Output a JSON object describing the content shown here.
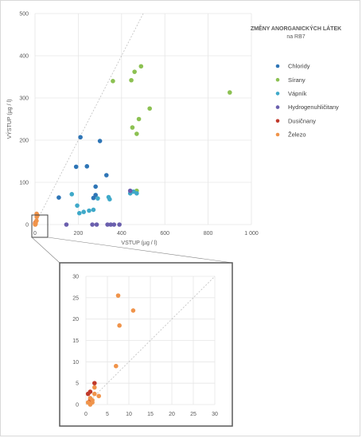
{
  "chart_data": [
    {
      "type": "scatter",
      "title": "ZMĚNY ANORGANICKÝCH LÁTEK",
      "subtitle": "na RB7",
      "xlabel": "VSTUP (µg / l)",
      "ylabel": "VÝSTUP (µg / l)",
      "xlim": [
        0,
        1000
      ],
      "ylim": [
        0,
        500
      ],
      "xticks": [
        "0",
        "200",
        "400",
        "600",
        "800",
        "1 000"
      ],
      "yticks": [
        "0",
        "100",
        "200",
        "300",
        "400",
        "500"
      ],
      "grid": true,
      "legend": "right",
      "reference_line": "y = x",
      "series": [
        {
          "name": "Chloridy",
          "color": "#2e75b6",
          "points": [
            [
              110,
              64
            ],
            [
              190,
              137
            ],
            [
              210,
              207
            ],
            [
              240,
              138
            ],
            [
              280,
              90
            ],
            [
              300,
              198
            ],
            [
              280,
              70
            ],
            [
              330,
              117
            ],
            [
              270,
              63
            ]
          ]
        },
        {
          "name": "Sírany",
          "color": "#8cc152",
          "points": [
            [
              360,
              340
            ],
            [
              445,
              342
            ],
            [
              460,
              362
            ],
            [
              490,
              375
            ],
            [
              530,
              275
            ],
            [
              480,
              250
            ],
            [
              450,
              230
            ],
            [
              470,
              215
            ],
            [
              470,
              80
            ],
            [
              900,
              313
            ]
          ]
        },
        {
          "name": "Vápník",
          "color": "#3fa9c9",
          "points": [
            [
              170,
              72
            ],
            [
              195,
              45
            ],
            [
              205,
              27
            ],
            [
              225,
              30
            ],
            [
              250,
              33
            ],
            [
              270,
              35
            ],
            [
              290,
              62
            ],
            [
              340,
              65
            ],
            [
              345,
              60
            ],
            [
              440,
              74
            ],
            [
              455,
              78
            ],
            [
              470,
              74
            ]
          ]
        },
        {
          "name": "Hydrogenuhličitany",
          "color": "#6a5fad",
          "points": [
            [
              145,
              0
            ],
            [
              265,
              0
            ],
            [
              285,
              0
            ],
            [
              335,
              0
            ],
            [
              350,
              0
            ],
            [
              365,
              0
            ],
            [
              390,
              0
            ],
            [
              440,
              80
            ]
          ]
        },
        {
          "name": "Dusičnany",
          "color": "#c0392b",
          "points": [
            [
              1,
              1
            ],
            [
              0.5,
              2.5
            ],
            [
              1,
              3
            ],
            [
              2,
              5
            ]
          ]
        },
        {
          "name": "Železo",
          "color": "#f0944b",
          "points": [
            [
              7.5,
              25.5
            ],
            [
              11,
              22
            ],
            [
              7.8,
              18.5
            ],
            [
              7,
              9
            ],
            [
              1,
              1.5
            ],
            [
              2,
              2.5
            ],
            [
              3,
              2
            ],
            [
              1.5,
              0.5
            ],
            [
              0.5,
              0.5
            ],
            [
              2,
              4
            ],
            [
              1,
              0
            ],
            [
              1.5,
              1
            ]
          ]
        }
      ]
    },
    {
      "type": "scatter",
      "xlim": [
        0,
        30
      ],
      "ylim": [
        0,
        30
      ],
      "xticks": [
        "0",
        "5",
        "10",
        "15",
        "20",
        "25",
        "30"
      ],
      "yticks": [
        "0",
        "5",
        "10",
        "15",
        "20",
        "25",
        "30"
      ],
      "grid": true,
      "reference_line": "y = x",
      "series_ref": "same series as main chart (values ≤ 30)"
    }
  ]
}
